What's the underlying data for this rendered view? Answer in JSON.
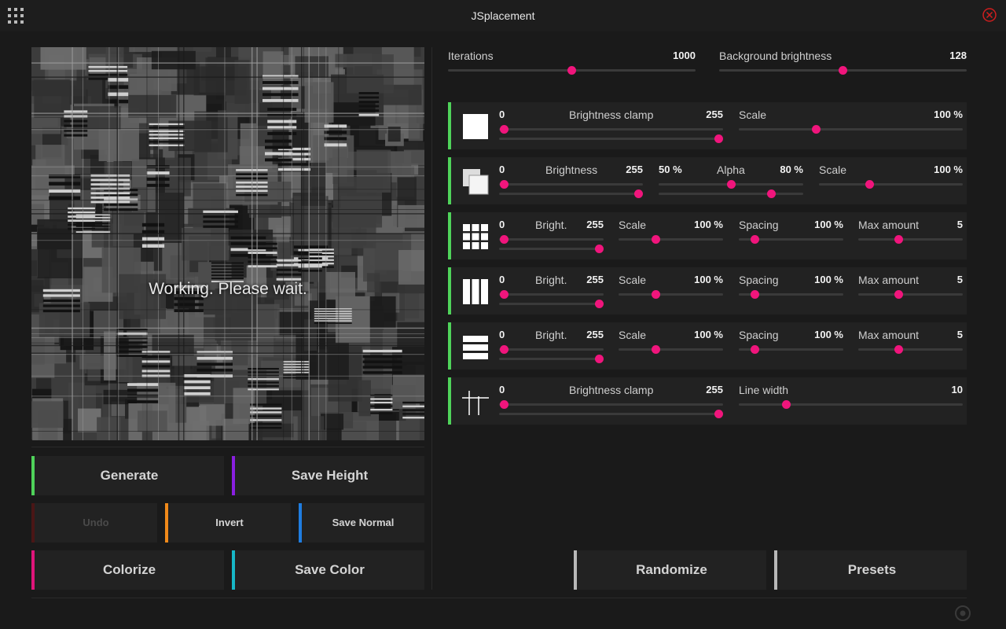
{
  "app": {
    "title": "JSplacement"
  },
  "preview": {
    "status": "Working. Please wait."
  },
  "global": {
    "iterations": {
      "label": "Iterations",
      "value": "1000",
      "level": 0.5
    },
    "background_brightness": {
      "label": "Background brightness",
      "value": "128",
      "level": 0.5
    }
  },
  "layers": {
    "l1": {
      "min": "0",
      "label": "Brightness clamp",
      "max": "255",
      "lo": 0.0,
      "hi": 1.0,
      "scale_label": "Scale",
      "scale_value": "100 %",
      "scale_level": 0.34
    },
    "l2": {
      "min": "0",
      "label": "Brightness",
      "max": "255",
      "lo": 0.0,
      "hi": 1.0,
      "alpha_min": "50 %",
      "alpha_label": "Alpha",
      "alpha_max": "80 %",
      "alpha_lo": 0.5,
      "alpha_hi": 0.8,
      "scale_label": "Scale",
      "scale_value": "100 %",
      "scale_level": 0.34
    },
    "l3": {
      "min": "0",
      "label": "Bright.",
      "max": "255",
      "lo": 0.0,
      "hi": 1.0,
      "scale_label": "Scale",
      "scale_value": "100 %",
      "scale_level": 0.34,
      "spacing_label": "Spacing",
      "spacing_value": "100 %",
      "spacing_level": 0.12,
      "max_label": "Max amount",
      "max_value": "5",
      "max_level": 0.38
    },
    "l4": {
      "min": "0",
      "label": "Bright.",
      "max": "255",
      "lo": 0.0,
      "hi": 1.0,
      "scale_label": "Scale",
      "scale_value": "100 %",
      "scale_level": 0.34,
      "spacing_label": "Spacing",
      "spacing_value": "100 %",
      "spacing_level": 0.12,
      "max_label": "Max amount",
      "max_value": "5",
      "max_level": 0.38
    },
    "l5": {
      "min": "0",
      "label": "Bright.",
      "max": "255",
      "lo": 0.0,
      "hi": 1.0,
      "scale_label": "Scale",
      "scale_value": "100 %",
      "scale_level": 0.34,
      "spacing_label": "Spacing",
      "spacing_value": "100 %",
      "spacing_level": 0.12,
      "max_label": "Max amount",
      "max_value": "5",
      "max_level": 0.38
    },
    "l6": {
      "min": "0",
      "label": "Brightness clamp",
      "max": "255",
      "lo": 0.0,
      "hi": 1.0,
      "width_label": "Line width",
      "width_value": "10",
      "width_level": 0.2
    }
  },
  "buttons": {
    "generate": "Generate",
    "save_height": "Save Height",
    "undo": "Undo",
    "invert": "Invert",
    "save_normal": "Save Normal",
    "colorize": "Colorize",
    "save_color": "Save Color",
    "randomize": "Randomize",
    "presets": "Presets"
  },
  "colors": {
    "accent_knob": "#f0157c",
    "layer_bar": "#4fd35a",
    "generate": "#4fd35a",
    "save_height": "#8a1fe0",
    "undo": "#5a1a1a",
    "invert": "#f08a1a",
    "save_normal": "#1f7de0",
    "colorize": "#e0157a",
    "save_color": "#17b7c7",
    "randomize": "#b8b8b8",
    "presets": "#b8b8b8"
  }
}
